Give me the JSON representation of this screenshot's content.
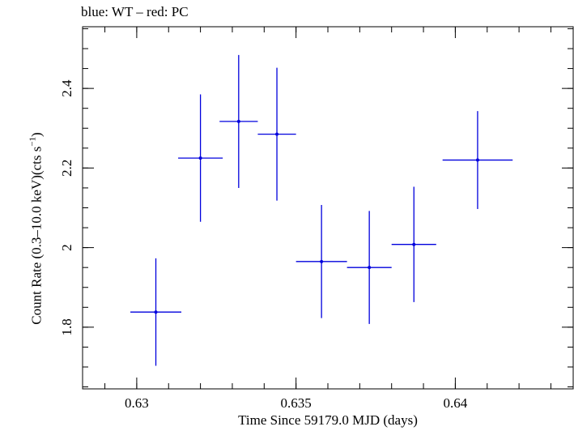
{
  "chart_data": {
    "type": "scatter",
    "title": "blue: WT – red: PC",
    "xlabel": "Time Since 59179.0 MJD (days)",
    "ylabel_main": "Count Rate (0.3–10.0 keV)(cts s",
    "ylabel_sup": "−1",
    "ylabel_end": ")",
    "xlim": [
      0.6283,
      0.6437
    ],
    "ylim": [
      1.645,
      2.555
    ],
    "x_ticks": [
      0.63,
      0.635,
      0.64
    ],
    "x_tick_labels": [
      "0.63",
      "0.635",
      "0.64"
    ],
    "y_ticks": [
      1.8,
      2.0,
      2.2,
      2.4
    ],
    "y_tick_labels": [
      "1.8",
      "2",
      "2.2",
      "2.4"
    ],
    "x_minor_step": 0.001,
    "y_minor_step": 0.05,
    "grid": false,
    "series": [
      {
        "color": "#0000dd",
        "points": [
          {
            "x": 0.6306,
            "xerr": 0.0008,
            "y": 1.838,
            "yerr": 0.135
          },
          {
            "x": 0.632,
            "xerr": 0.0007,
            "y": 2.225,
            "yerr": 0.16
          },
          {
            "x": 0.6332,
            "xerr": 0.0006,
            "y": 2.317,
            "yerr": 0.167
          },
          {
            "x": 0.6344,
            "xerr": 0.0006,
            "y": 2.285,
            "yerr": 0.167
          },
          {
            "x": 0.6358,
            "xerr": 0.0008,
            "y": 1.965,
            "yerr": 0.142
          },
          {
            "x": 0.6373,
            "xerr": 0.0007,
            "y": 1.95,
            "yerr": 0.142
          },
          {
            "x": 0.6387,
            "xerr": 0.0007,
            "y": 2.008,
            "yerr": 0.145
          },
          {
            "x": 0.6407,
            "xerr": 0.0011,
            "y": 2.22,
            "yerr": 0.123
          }
        ]
      }
    ]
  }
}
